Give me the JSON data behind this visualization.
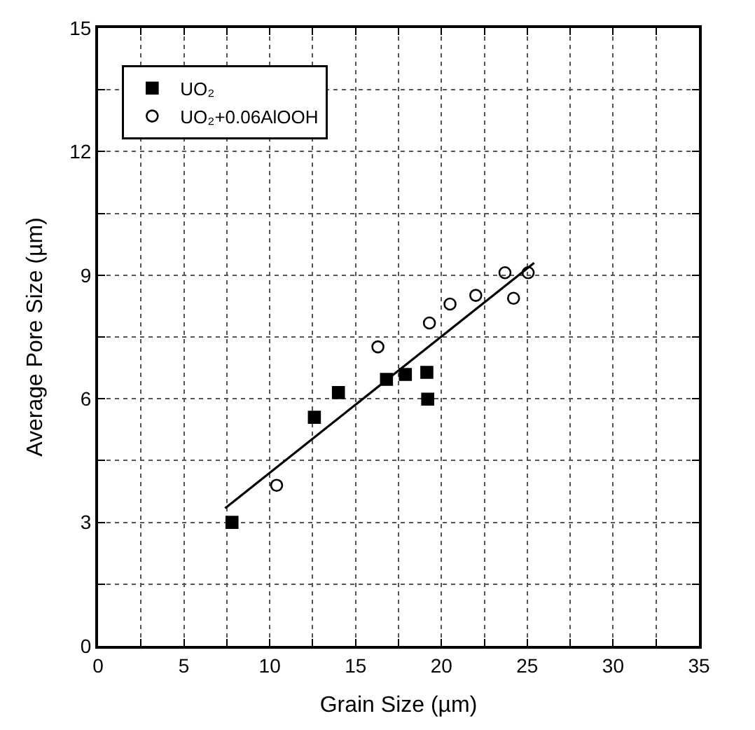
{
  "chart_data": {
    "type": "scatter",
    "xlabel": "Grain Size (µm)",
    "ylabel": "Average Pore Size (µm)",
    "xlim": [
      0,
      35
    ],
    "ylim": [
      0,
      15
    ],
    "xticks": [
      0,
      {
        "value": 2.5,
        "label": null
      },
      5,
      {
        "value": 7.5,
        "label": null
      },
      10,
      {
        "value": 12.5,
        "label": null
      },
      15,
      {
        "value": 17.5,
        "label": null
      },
      20,
      {
        "value": 22.5,
        "label": null
      },
      25,
      {
        "value": 27.5,
        "label": null
      },
      30,
      {
        "value": 32.5,
        "label": null
      },
      35
    ],
    "yticks": [
      0,
      {
        "value": 1.5,
        "label": null
      },
      3,
      {
        "value": 4.5,
        "label": null
      },
      6,
      {
        "value": 7.5,
        "label": null
      },
      9,
      {
        "value": 10.5,
        "label": null
      },
      12,
      {
        "value": 13.5,
        "label": null
      },
      15
    ],
    "grid": true,
    "legend": "top left",
    "series": [
      {
        "name": "UO₂",
        "color": "#000000",
        "marker": "square",
        "x": [
          7.8,
          12.6,
          14.0,
          16.8,
          17.9,
          19.05,
          19.15,
          19.2
        ],
        "values": [
          3.0,
          5.55,
          6.15,
          6.47,
          6.59,
          null,
          6.64,
          5.99
        ]
      },
      {
        "name": "UO₂+0.06AlOOH",
        "color": "#000000",
        "marker": "circle-open",
        "x": [
          10.4,
          16.3,
          19.3,
          20.5,
          22.0,
          23.7,
          24.2,
          25.05
        ],
        "values": [
          3.9,
          7.26,
          7.84,
          8.3,
          8.51,
          9.06,
          8.44,
          9.06
        ]
      },
      {
        "type": "line",
        "color": "#000000",
        "marker": "none",
        "line_style": "solid",
        "x": [
          7.4,
          25.4
        ],
        "values": [
          3.34,
          9.3
        ]
      }
    ]
  }
}
